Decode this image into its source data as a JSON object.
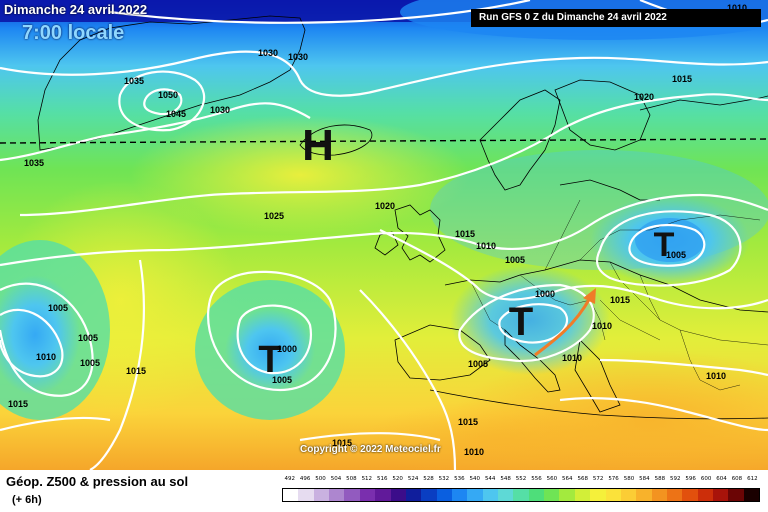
{
  "header": {
    "date": "Dimanche 24 avril 2022",
    "time": "7:00 locale",
    "run": "Run GFS 0 Z du Dimanche 24 avril 2022"
  },
  "footer": {
    "title": "Géop. Z500 & pression au sol",
    "subtitle": "(+ 6h)",
    "copyright": "Copyright © 2022 Meteociel.fr"
  },
  "pressure_centers": [
    {
      "symbol": "H",
      "kind": "high"
    },
    {
      "symbol": "T",
      "kind": "low"
    },
    {
      "symbol": "T",
      "kind": "low"
    },
    {
      "symbol": "T",
      "kind": "low"
    }
  ],
  "isobar_labels": [
    "1010",
    "1030",
    "1030",
    "1035",
    "1050",
    "1045",
    "1030",
    "1035",
    "1025",
    "1020",
    "1015",
    "1010",
    "1005",
    "1000",
    "1005",
    "1005",
    "1010",
    "1005",
    "1015",
    "1015",
    "1000",
    "1005",
    "1005",
    "1015",
    "1020",
    "1005",
    "1010",
    "1010",
    "1010",
    "1015",
    "1015",
    "1010",
    "1015"
  ],
  "scale": {
    "labels": [
      "492",
      "496",
      "500",
      "504",
      "508",
      "512",
      "516",
      "520",
      "524",
      "528",
      "532",
      "536",
      "540",
      "544",
      "548",
      "552",
      "556",
      "560",
      "564",
      "568",
      "572",
      "576",
      "580",
      "584",
      "588",
      "592",
      "596",
      "600",
      "604",
      "608",
      "612"
    ],
    "colors": [
      "#ffffff",
      "#e6dcf0",
      "#c9b1e0",
      "#ad86cf",
      "#925bbf",
      "#7a2fae",
      "#611a9a",
      "#3b0d8a",
      "#101e9c",
      "#0a3ec2",
      "#0a5fe0",
      "#1d86f2",
      "#35a9f4",
      "#4ec6ef",
      "#5ed9d6",
      "#55dfa6",
      "#4ede7a",
      "#6fe455",
      "#a3ea3e",
      "#d2ef38",
      "#f5f03a",
      "#fbe23a",
      "#fbcd35",
      "#f8b22b",
      "#f39320",
      "#ed7316",
      "#e2500d",
      "#cc2e0a",
      "#a8130a",
      "#6b0505",
      "#1a0000"
    ]
  }
}
